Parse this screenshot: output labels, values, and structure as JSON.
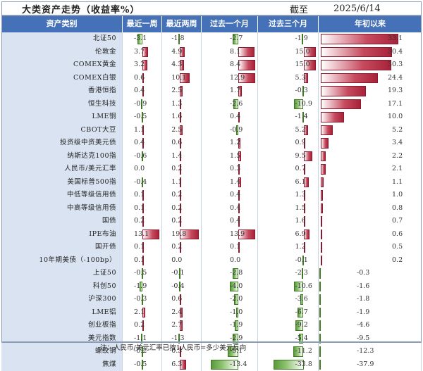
{
  "title": "大类资产走势（收益率%）",
  "asof_label": "截至",
  "date": "2025/6/14",
  "columns": [
    "资产类别",
    "最近一周",
    "最近两周",
    "过去一个月",
    "过去三个月",
    "年初以来"
  ],
  "rows": [
    {
      "name": "北证50",
      "v": [
        -3.1,
        -1.8,
        -2.7,
        -1.9,
        33.1
      ]
    },
    {
      "name": "伦敦金",
      "v": [
        3.7,
        4.9,
        8.1,
        15.0,
        30.4
      ]
    },
    {
      "name": "COMEX黄金",
      "v": [
        3.2,
        4.3,
        8.4,
        15.0,
        30.3
      ]
    },
    {
      "name": "COMEX白银",
      "v": [
        0.6,
        10.1,
        12.9,
        5.3,
        24.4
      ]
    },
    {
      "name": "香港恒指",
      "v": [
        0.4,
        2.5,
        1.7,
        -0.3,
        19.3
      ]
    },
    {
      "name": "恒生科技",
      "v": [
        -0.9,
        1.3,
        -2.6,
        -10.9,
        17.1
      ]
    },
    {
      "name": "LME铜",
      "v": [
        -0.5,
        1.6,
        0.4,
        -1.4,
        10.0
      ]
    },
    {
      "name": "CBOT大豆",
      "v": [
        1.1,
        2.5,
        -0.9,
        5.2,
        5.2
      ]
    },
    {
      "name": "投资级中资美元债",
      "v": [
        0.4,
        0.6,
        1.2,
        0.9,
        3.4
      ]
    },
    {
      "name": "纳斯达克100指",
      "v": [
        -0.6,
        1.4,
        1.5,
        9.5,
        2.2
      ]
    },
    {
      "name": "人民币/美元汇率",
      "v": [
        0.0,
        0.2,
        0.3,
        0.7,
        2.1
      ]
    },
    {
      "name": "美国标普500指",
      "v": [
        -0.4,
        1.1,
        1.4,
        6.1,
        1.1
      ]
    },
    {
      "name": "中低等级信用债",
      "v": [
        0.1,
        0.2,
        0.4,
        1.3,
        1.0
      ]
    },
    {
      "name": "中高等级信用债",
      "v": [
        0.1,
        0.2,
        0.4,
        1.5,
        0.8
      ]
    },
    {
      "name": "国债",
      "v": [
        0.2,
        0.2,
        0.4,
        1.6,
        0.7
      ]
    },
    {
      "name": "IPE布油",
      "v": [
        13.1,
        19.8,
        13.9,
        6.9,
        0.6
      ]
    },
    {
      "name": "国开债",
      "v": [
        0.1,
        0.2,
        0.1,
        1.2,
        0.5
      ]
    },
    {
      "name": "10年期美债（-100bp）",
      "v": [
        0.1,
        0.0,
        0.0,
        -0.1,
        0.2
      ]
    },
    {
      "name": "上证50",
      "v": [
        -0.5,
        -0.1,
        -2.8,
        -2.3,
        -0.3
      ]
    },
    {
      "name": "科创50",
      "v": [
        -1.9,
        -0.4,
        -4.0,
        -10.6,
        -1.6
      ]
    },
    {
      "name": "沪深300",
      "v": [
        -0.3,
        0.6,
        -2.0,
        -3.6,
        -1.8
      ]
    },
    {
      "name": "LME铝",
      "v": [
        2.1,
        2.4,
        -1.0,
        -6.7,
        -1.9
      ]
    },
    {
      "name": "创业板指",
      "v": [
        0.2,
        2.7,
        -1.9,
        -9.2,
        -4.6
      ]
    },
    {
      "name": "美元指数",
      "v": [
        -1.1,
        -1.3,
        -2.9,
        -5.4,
        -9.5
      ]
    },
    {
      "name": "螺纹钢",
      "v": [
        -0.2,
        0.3,
        -5.1,
        -11.2,
        -12.3
      ]
    },
    {
      "name": "焦煤",
      "v": [
        -0.5,
        6.3,
        -13.4,
        -33.8,
        -37.9
      ]
    }
  ],
  "note": "注：人民币/美元汇率已按1人民币=多少美元反向",
  "colors": {
    "header": "#4471b8",
    "label_bg": "#d9e3f1",
    "positive": "#a8223a",
    "negative": "#5b9a3c"
  }
}
